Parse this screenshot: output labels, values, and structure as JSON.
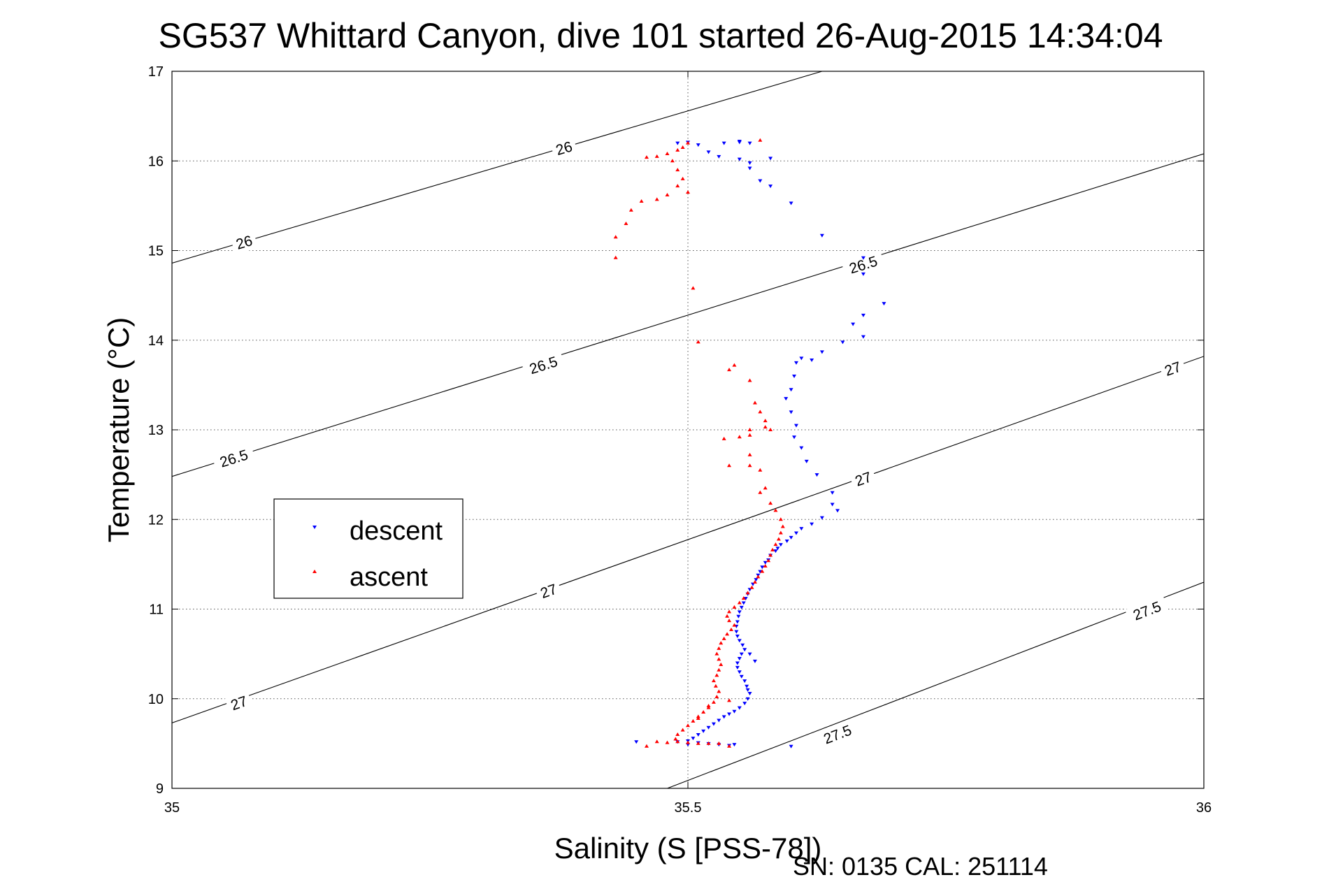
{
  "chart_data": {
    "type": "scatter",
    "title": "SG537 Whittard Canyon, dive 101 started 26-Aug-2015 14:34:04",
    "xlabel": "Salinity (S [PSS-78])",
    "ylabel": "Temperature (°C)",
    "xlim": [
      35,
      36
    ],
    "ylim": [
      9,
      17
    ],
    "xticks": [
      "35",
      "35.5",
      "36"
    ],
    "xtick_values": [
      35,
      35.5,
      36
    ],
    "yticks": [
      "9",
      "10",
      "11",
      "12",
      "13",
      "14",
      "15",
      "16",
      "17"
    ],
    "ytick_values": [
      9,
      10,
      11,
      12,
      13,
      14,
      15,
      16,
      17
    ],
    "grid": true,
    "legend_position": "left",
    "footer": "SN: 0135  CAL: 251114",
    "density_contours": [
      {
        "label": "26",
        "points": [
          [
            35,
            14.86
          ],
          [
            35.63,
            17
          ]
        ],
        "labels_at": [
          [
            35.07,
            15.09
          ],
          [
            35.38,
            16.14
          ]
        ]
      },
      {
        "label": "26.5",
        "points": [
          [
            35,
            12.48
          ],
          [
            36,
            16.08
          ]
        ],
        "labels_at": [
          [
            35.06,
            12.68
          ],
          [
            35.36,
            13.72
          ],
          [
            35.67,
            14.84
          ]
        ]
      },
      {
        "label": "27",
        "points": [
          [
            35,
            9.73
          ],
          [
            36,
            13.82
          ]
        ],
        "labels_at": [
          [
            35.065,
            9.95
          ],
          [
            35.365,
            11.2
          ],
          [
            35.67,
            12.45
          ],
          [
            35.97,
            13.68
          ]
        ]
      },
      {
        "label": "27.5",
        "points": [
          [
            35.48,
            9
          ],
          [
            36,
            11.3
          ]
        ],
        "labels_at": [
          [
            35.645,
            9.6
          ],
          [
            35.945,
            10.98
          ]
        ]
      }
    ],
    "series": [
      {
        "name": "descent",
        "color": "#0000ff",
        "marker": "triangle-down",
        "points": [
          [
            35.49,
            16.2
          ],
          [
            35.5,
            16.21
          ],
          [
            35.51,
            16.18
          ],
          [
            35.52,
            16.1
          ],
          [
            35.53,
            16.05
          ],
          [
            35.55,
            16.02
          ],
          [
            35.56,
            15.98
          ],
          [
            35.535,
            16.2
          ],
          [
            35.55,
            16.21
          ],
          [
            35.58,
            16.03
          ],
          [
            35.55,
            16.22
          ],
          [
            35.56,
            16.2
          ],
          [
            35.56,
            15.92
          ],
          [
            35.57,
            15.78
          ],
          [
            35.58,
            15.72
          ],
          [
            35.6,
            15.53
          ],
          [
            35.63,
            15.17
          ],
          [
            35.67,
            14.92
          ],
          [
            35.67,
            14.74
          ],
          [
            35.67,
            14.28
          ],
          [
            35.69,
            14.41
          ],
          [
            35.66,
            14.18
          ],
          [
            35.67,
            14.04
          ],
          [
            35.65,
            13.98
          ],
          [
            35.63,
            13.87
          ],
          [
            35.61,
            13.8
          ],
          [
            35.62,
            13.78
          ],
          [
            35.605,
            13.75
          ],
          [
            35.603,
            13.6
          ],
          [
            35.6,
            13.45
          ],
          [
            35.595,
            13.35
          ],
          [
            35.6,
            13.2
          ],
          [
            35.605,
            13.05
          ],
          [
            35.603,
            12.92
          ],
          [
            35.61,
            12.8
          ],
          [
            35.615,
            12.65
          ],
          [
            35.625,
            12.5
          ],
          [
            35.64,
            12.3
          ],
          [
            35.64,
            12.17
          ],
          [
            35.645,
            12.1
          ],
          [
            35.63,
            12.02
          ],
          [
            35.62,
            11.95
          ],
          [
            35.61,
            11.9
          ],
          [
            35.605,
            11.85
          ],
          [
            35.6,
            11.8
          ],
          [
            35.596,
            11.76
          ],
          [
            35.59,
            11.72
          ],
          [
            35.587,
            11.68
          ],
          [
            35.585,
            11.65
          ],
          [
            35.58,
            11.6
          ],
          [
            35.578,
            11.55
          ],
          [
            35.575,
            11.52
          ],
          [
            35.572,
            11.47
          ],
          [
            35.57,
            11.42
          ],
          [
            35.568,
            11.38
          ],
          [
            35.566,
            11.33
          ],
          [
            35.563,
            11.28
          ],
          [
            35.56,
            11.22
          ],
          [
            35.558,
            11.17
          ],
          [
            35.556,
            11.12
          ],
          [
            35.554,
            11.07
          ],
          [
            35.552,
            11.02
          ],
          [
            35.55,
            10.97
          ],
          [
            35.549,
            10.92
          ],
          [
            35.548,
            10.86
          ],
          [
            35.547,
            10.81
          ],
          [
            35.547,
            10.75
          ],
          [
            35.548,
            10.7
          ],
          [
            35.55,
            10.65
          ],
          [
            35.553,
            10.6
          ],
          [
            35.555,
            10.55
          ],
          [
            35.552,
            10.5
          ],
          [
            35.55,
            10.45
          ],
          [
            35.548,
            10.4
          ],
          [
            35.548,
            10.35
          ],
          [
            35.55,
            10.3
          ],
          [
            35.552,
            10.25
          ],
          [
            35.555,
            10.2
          ],
          [
            35.557,
            10.14
          ],
          [
            35.558,
            10.1
          ],
          [
            35.56,
            10.06
          ],
          [
            35.558,
            10.0
          ],
          [
            35.555,
            9.95
          ],
          [
            35.55,
            9.9
          ],
          [
            35.545,
            9.86
          ],
          [
            35.54,
            9.83
          ],
          [
            35.535,
            9.8
          ],
          [
            35.53,
            9.76
          ],
          [
            35.525,
            9.72
          ],
          [
            35.52,
            9.68
          ],
          [
            35.515,
            9.64
          ],
          [
            35.51,
            9.6
          ],
          [
            35.505,
            9.56
          ],
          [
            35.5,
            9.53
          ],
          [
            35.51,
            9.51
          ],
          [
            35.52,
            9.5
          ],
          [
            35.53,
            9.49
          ],
          [
            35.54,
            9.48
          ],
          [
            35.545,
            9.49
          ],
          [
            35.5,
            9.49
          ],
          [
            35.45,
            9.52
          ],
          [
            35.49,
            9.52
          ],
          [
            35.6,
            9.47
          ],
          [
            35.565,
            10.42
          ],
          [
            35.56,
            10.5
          ]
        ]
      },
      {
        "name": "ascent",
        "color": "#ff0000",
        "marker": "triangle-up",
        "points": [
          [
            35.57,
            16.23
          ],
          [
            35.5,
            16.2
          ],
          [
            35.495,
            16.15
          ],
          [
            35.49,
            16.12
          ],
          [
            35.48,
            16.08
          ],
          [
            35.47,
            16.05
          ],
          [
            35.46,
            16.04
          ],
          [
            35.485,
            16.0
          ],
          [
            35.49,
            15.9
          ],
          [
            35.495,
            15.8
          ],
          [
            35.49,
            15.72
          ],
          [
            35.5,
            15.65
          ],
          [
            35.48,
            15.62
          ],
          [
            35.47,
            15.57
          ],
          [
            35.455,
            15.55
          ],
          [
            35.445,
            15.45
          ],
          [
            35.44,
            15.3
          ],
          [
            35.43,
            15.15
          ],
          [
            35.43,
            14.92
          ],
          [
            35.505,
            14.58
          ],
          [
            35.51,
            13.98
          ],
          [
            35.545,
            13.72
          ],
          [
            35.54,
            13.67
          ],
          [
            35.56,
            13.55
          ],
          [
            35.565,
            13.3
          ],
          [
            35.57,
            13.2
          ],
          [
            35.575,
            13.1
          ],
          [
            35.56,
            13.0
          ],
          [
            35.575,
            13.03
          ],
          [
            35.58,
            13.0
          ],
          [
            35.56,
            12.94
          ],
          [
            35.55,
            12.92
          ],
          [
            35.535,
            12.9
          ],
          [
            35.56,
            12.72
          ],
          [
            35.56,
            12.6
          ],
          [
            35.54,
            12.6
          ],
          [
            35.57,
            12.55
          ],
          [
            35.575,
            12.35
          ],
          [
            35.57,
            12.3
          ],
          [
            35.58,
            12.18
          ],
          [
            35.585,
            12.1
          ],
          [
            35.59,
            12.0
          ],
          [
            35.592,
            11.92
          ],
          [
            35.59,
            11.85
          ],
          [
            35.588,
            11.78
          ],
          [
            35.585,
            11.72
          ],
          [
            35.582,
            11.66
          ],
          [
            35.58,
            11.6
          ],
          [
            35.578,
            11.54
          ],
          [
            35.575,
            11.48
          ],
          [
            35.572,
            11.42
          ],
          [
            35.568,
            11.36
          ],
          [
            35.565,
            11.3
          ],
          [
            35.562,
            11.24
          ],
          [
            35.558,
            11.18
          ],
          [
            35.554,
            11.12
          ],
          [
            35.55,
            11.07
          ],
          [
            35.545,
            11.02
          ],
          [
            35.54,
            10.97
          ],
          [
            35.538,
            10.92
          ],
          [
            35.54,
            10.87
          ],
          [
            35.545,
            10.82
          ],
          [
            35.542,
            10.77
          ],
          [
            35.538,
            10.72
          ],
          [
            35.535,
            10.67
          ],
          [
            35.532,
            10.62
          ],
          [
            35.53,
            10.56
          ],
          [
            35.528,
            10.5
          ],
          [
            35.53,
            10.44
          ],
          [
            35.532,
            10.38
          ],
          [
            35.53,
            10.32
          ],
          [
            35.528,
            10.26
          ],
          [
            35.525,
            10.2
          ],
          [
            35.527,
            10.14
          ],
          [
            35.53,
            10.08
          ],
          [
            35.528,
            10.02
          ],
          [
            35.525,
            9.96
          ],
          [
            35.52,
            9.9
          ],
          [
            35.515,
            9.85
          ],
          [
            35.51,
            9.8
          ],
          [
            35.505,
            9.75
          ],
          [
            35.5,
            9.7
          ],
          [
            35.495,
            9.65
          ],
          [
            35.49,
            9.6
          ],
          [
            35.488,
            9.55
          ],
          [
            35.49,
            9.52
          ],
          [
            35.5,
            9.51
          ],
          [
            35.51,
            9.5
          ],
          [
            35.52,
            9.5
          ],
          [
            35.53,
            9.5
          ],
          [
            35.47,
            9.52
          ],
          [
            35.48,
            9.51
          ],
          [
            35.46,
            9.47
          ],
          [
            35.54,
            9.47
          ],
          [
            35.52,
            9.92
          ],
          [
            35.54,
            9.98
          ],
          [
            35.51,
            9.78
          ]
        ]
      }
    ]
  }
}
